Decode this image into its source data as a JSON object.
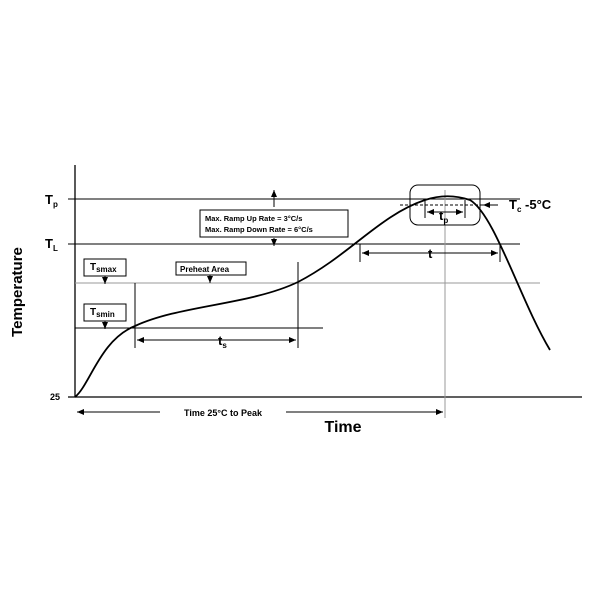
{
  "y_axis": {
    "title": "Temperature",
    "labels": {
      "tp": {
        "base": "T",
        "sub": "p"
      },
      "tl": {
        "base": "T",
        "sub": "L"
      },
      "start": "25"
    }
  },
  "x_axis": {
    "title": "Time"
  },
  "annotations": {
    "tc": {
      "base": "T",
      "sub": "c",
      "rest": " -5°C"
    },
    "tp_width": {
      "base": "t",
      "sub": "p"
    },
    "t": "t",
    "ramp": [
      "Max. Ramp Up Rate = 3°C/s",
      "Max. Ramp Down Rate = 6°C/s"
    ],
    "tsmax": {
      "base": "T",
      "sub": "smax"
    },
    "tsmin": {
      "base": "T",
      "sub": "smin"
    },
    "preheat": "Preheat Area",
    "ts": {
      "base": "t",
      "sub": "s"
    },
    "time_to_peak": "Time 25°C to Peak"
  }
}
